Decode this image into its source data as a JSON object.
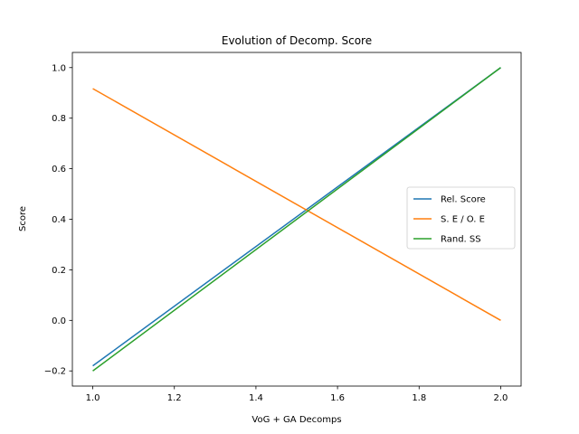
{
  "chart_data": {
    "type": "line",
    "title": "Evolution of Decomp. Score",
    "xlabel": "VoG + GA Decomps",
    "ylabel": "Score",
    "xlim": [
      0.95,
      2.05
    ],
    "ylim": [
      -0.26,
      1.06
    ],
    "xticks": [
      1.0,
      1.2,
      1.4,
      1.6,
      1.8,
      2.0
    ],
    "xtick_labels": [
      "1.0",
      "1.2",
      "1.4",
      "1.6",
      "1.8",
      "2.0"
    ],
    "yticks": [
      -0.2,
      0.0,
      0.2,
      0.4,
      0.6,
      0.8,
      1.0
    ],
    "ytick_labels": [
      "−0.2",
      "0.0",
      "0.2",
      "0.4",
      "0.6",
      "0.8",
      "1.0"
    ],
    "grid": false,
    "legend_position": "center-right",
    "series": [
      {
        "name": "Rel. Score",
        "color": "#1f77b4",
        "x": [
          1.0,
          2.0
        ],
        "y": [
          -0.18,
          1.0
        ]
      },
      {
        "name": "S. E / O. E",
        "color": "#ff7f0e",
        "x": [
          1.0,
          2.0
        ],
        "y": [
          0.917,
          0.0
        ]
      },
      {
        "name": "Rand. SS",
        "color": "#2ca02c",
        "x": [
          1.0,
          2.0
        ],
        "y": [
          -0.2,
          1.0
        ]
      }
    ]
  }
}
